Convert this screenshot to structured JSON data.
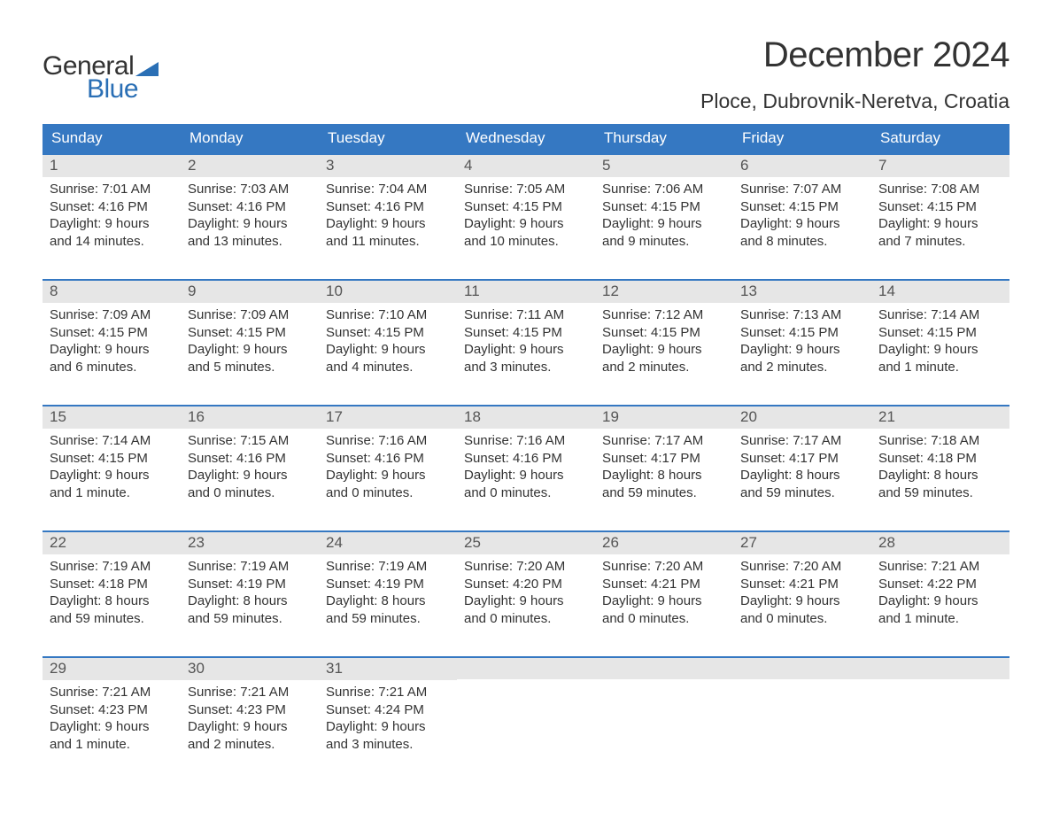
{
  "brand": {
    "word1": "General",
    "word2": "Blue",
    "flag_color": "#2a6fb5"
  },
  "title": {
    "month": "December 2024",
    "location": "Ploce, Dubrovnik-Neretva, Croatia"
  },
  "colors": {
    "header_bg": "#3578c2",
    "header_text": "#ffffff",
    "daynum_bg": "#e6e6e6",
    "border": "#3578c2",
    "text": "#333333",
    "brand_blue": "#2a6fb5"
  },
  "weekdays": [
    "Sunday",
    "Monday",
    "Tuesday",
    "Wednesday",
    "Thursday",
    "Friday",
    "Saturday"
  ],
  "weeks": [
    [
      {
        "n": "1",
        "sr": "Sunrise: 7:01 AM",
        "ss": "Sunset: 4:16 PM",
        "d1": "Daylight: 9 hours",
        "d2": "and 14 minutes."
      },
      {
        "n": "2",
        "sr": "Sunrise: 7:03 AM",
        "ss": "Sunset: 4:16 PM",
        "d1": "Daylight: 9 hours",
        "d2": "and 13 minutes."
      },
      {
        "n": "3",
        "sr": "Sunrise: 7:04 AM",
        "ss": "Sunset: 4:16 PM",
        "d1": "Daylight: 9 hours",
        "d2": "and 11 minutes."
      },
      {
        "n": "4",
        "sr": "Sunrise: 7:05 AM",
        "ss": "Sunset: 4:15 PM",
        "d1": "Daylight: 9 hours",
        "d2": "and 10 minutes."
      },
      {
        "n": "5",
        "sr": "Sunrise: 7:06 AM",
        "ss": "Sunset: 4:15 PM",
        "d1": "Daylight: 9 hours",
        "d2": "and 9 minutes."
      },
      {
        "n": "6",
        "sr": "Sunrise: 7:07 AM",
        "ss": "Sunset: 4:15 PM",
        "d1": "Daylight: 9 hours",
        "d2": "and 8 minutes."
      },
      {
        "n": "7",
        "sr": "Sunrise: 7:08 AM",
        "ss": "Sunset: 4:15 PM",
        "d1": "Daylight: 9 hours",
        "d2": "and 7 minutes."
      }
    ],
    [
      {
        "n": "8",
        "sr": "Sunrise: 7:09 AM",
        "ss": "Sunset: 4:15 PM",
        "d1": "Daylight: 9 hours",
        "d2": "and 6 minutes."
      },
      {
        "n": "9",
        "sr": "Sunrise: 7:09 AM",
        "ss": "Sunset: 4:15 PM",
        "d1": "Daylight: 9 hours",
        "d2": "and 5 minutes."
      },
      {
        "n": "10",
        "sr": "Sunrise: 7:10 AM",
        "ss": "Sunset: 4:15 PM",
        "d1": "Daylight: 9 hours",
        "d2": "and 4 minutes."
      },
      {
        "n": "11",
        "sr": "Sunrise: 7:11 AM",
        "ss": "Sunset: 4:15 PM",
        "d1": "Daylight: 9 hours",
        "d2": "and 3 minutes."
      },
      {
        "n": "12",
        "sr": "Sunrise: 7:12 AM",
        "ss": "Sunset: 4:15 PM",
        "d1": "Daylight: 9 hours",
        "d2": "and 2 minutes."
      },
      {
        "n": "13",
        "sr": "Sunrise: 7:13 AM",
        "ss": "Sunset: 4:15 PM",
        "d1": "Daylight: 9 hours",
        "d2": "and 2 minutes."
      },
      {
        "n": "14",
        "sr": "Sunrise: 7:14 AM",
        "ss": "Sunset: 4:15 PM",
        "d1": "Daylight: 9 hours",
        "d2": "and 1 minute."
      }
    ],
    [
      {
        "n": "15",
        "sr": "Sunrise: 7:14 AM",
        "ss": "Sunset: 4:15 PM",
        "d1": "Daylight: 9 hours",
        "d2": "and 1 minute."
      },
      {
        "n": "16",
        "sr": "Sunrise: 7:15 AM",
        "ss": "Sunset: 4:16 PM",
        "d1": "Daylight: 9 hours",
        "d2": "and 0 minutes."
      },
      {
        "n": "17",
        "sr": "Sunrise: 7:16 AM",
        "ss": "Sunset: 4:16 PM",
        "d1": "Daylight: 9 hours",
        "d2": "and 0 minutes."
      },
      {
        "n": "18",
        "sr": "Sunrise: 7:16 AM",
        "ss": "Sunset: 4:16 PM",
        "d1": "Daylight: 9 hours",
        "d2": "and 0 minutes."
      },
      {
        "n": "19",
        "sr": "Sunrise: 7:17 AM",
        "ss": "Sunset: 4:17 PM",
        "d1": "Daylight: 8 hours",
        "d2": "and 59 minutes."
      },
      {
        "n": "20",
        "sr": "Sunrise: 7:17 AM",
        "ss": "Sunset: 4:17 PM",
        "d1": "Daylight: 8 hours",
        "d2": "and 59 minutes."
      },
      {
        "n": "21",
        "sr": "Sunrise: 7:18 AM",
        "ss": "Sunset: 4:18 PM",
        "d1": "Daylight: 8 hours",
        "d2": "and 59 minutes."
      }
    ],
    [
      {
        "n": "22",
        "sr": "Sunrise: 7:19 AM",
        "ss": "Sunset: 4:18 PM",
        "d1": "Daylight: 8 hours",
        "d2": "and 59 minutes."
      },
      {
        "n": "23",
        "sr": "Sunrise: 7:19 AM",
        "ss": "Sunset: 4:19 PM",
        "d1": "Daylight: 8 hours",
        "d2": "and 59 minutes."
      },
      {
        "n": "24",
        "sr": "Sunrise: 7:19 AM",
        "ss": "Sunset: 4:19 PM",
        "d1": "Daylight: 8 hours",
        "d2": "and 59 minutes."
      },
      {
        "n": "25",
        "sr": "Sunrise: 7:20 AM",
        "ss": "Sunset: 4:20 PM",
        "d1": "Daylight: 9 hours",
        "d2": "and 0 minutes."
      },
      {
        "n": "26",
        "sr": "Sunrise: 7:20 AM",
        "ss": "Sunset: 4:21 PM",
        "d1": "Daylight: 9 hours",
        "d2": "and 0 minutes."
      },
      {
        "n": "27",
        "sr": "Sunrise: 7:20 AM",
        "ss": "Sunset: 4:21 PM",
        "d1": "Daylight: 9 hours",
        "d2": "and 0 minutes."
      },
      {
        "n": "28",
        "sr": "Sunrise: 7:21 AM",
        "ss": "Sunset: 4:22 PM",
        "d1": "Daylight: 9 hours",
        "d2": "and 1 minute."
      }
    ],
    [
      {
        "n": "29",
        "sr": "Sunrise: 7:21 AM",
        "ss": "Sunset: 4:23 PM",
        "d1": "Daylight: 9 hours",
        "d2": "and 1 minute."
      },
      {
        "n": "30",
        "sr": "Sunrise: 7:21 AM",
        "ss": "Sunset: 4:23 PM",
        "d1": "Daylight: 9 hours",
        "d2": "and 2 minutes."
      },
      {
        "n": "31",
        "sr": "Sunrise: 7:21 AM",
        "ss": "Sunset: 4:24 PM",
        "d1": "Daylight: 9 hours",
        "d2": "and 3 minutes."
      },
      null,
      null,
      null,
      null
    ]
  ]
}
